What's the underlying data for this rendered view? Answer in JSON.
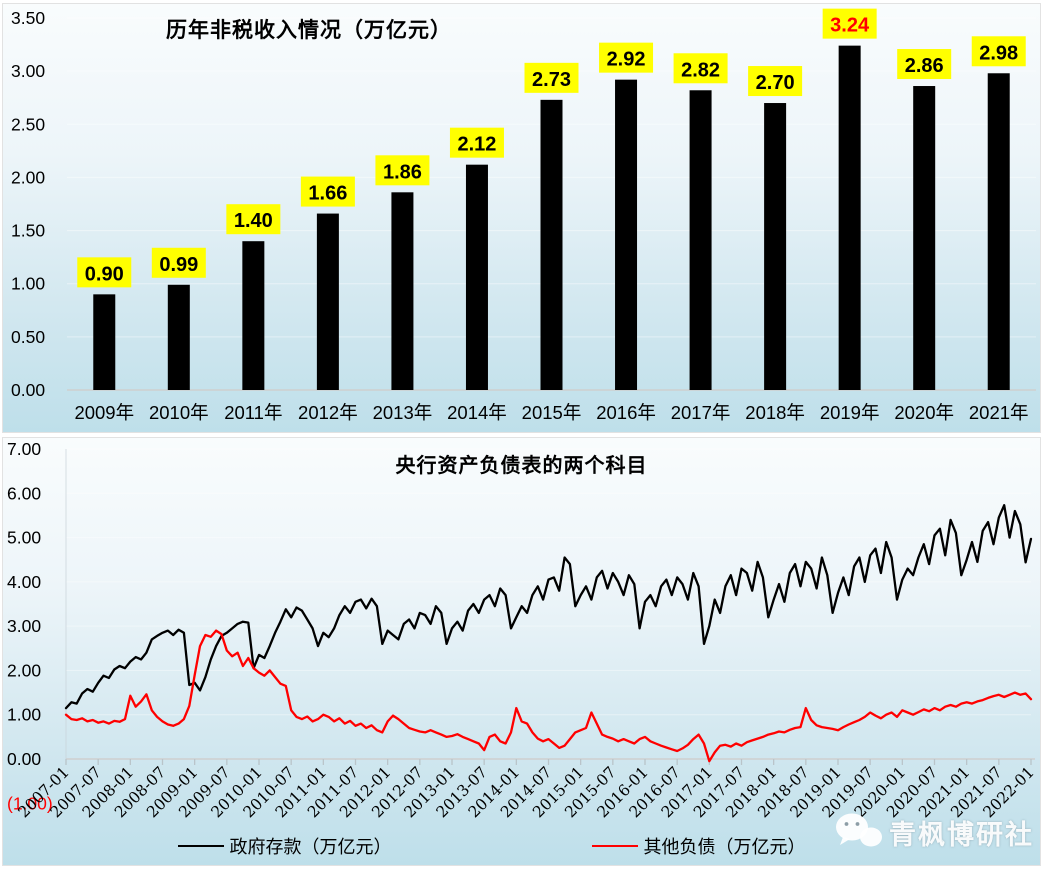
{
  "watermark": {
    "text": "青枫博研社",
    "icon": "wechat-icon"
  },
  "panel_style": {
    "gradient_top": "#f9fcfd",
    "gradient_bottom": "#bedfea",
    "axis_color": "#cfcfcf"
  },
  "chart_data": [
    {
      "type": "bar",
      "title": "历年非税收入情况（万亿元）",
      "categories": [
        "2009年",
        "2010年",
        "2011年",
        "2012年",
        "2013年",
        "2014年",
        "2015年",
        "2016年",
        "2017年",
        "2018年",
        "2019年",
        "2020年",
        "2021年"
      ],
      "values": [
        0.9,
        0.99,
        1.4,
        1.66,
        1.86,
        2.12,
        2.73,
        2.92,
        2.82,
        2.7,
        3.24,
        2.86,
        2.98
      ],
      "bar_color": "#000000",
      "data_label_bg": "#ffff00",
      "data_label_color": "#000000",
      "highlight_index": 10,
      "highlight_label_color": "#ff0000",
      "ylim": [
        0,
        3.5
      ],
      "yticks": [
        "3.50",
        "3.00",
        "2.50",
        "2.00",
        "1.50",
        "1.00",
        "0.50",
        "0.00"
      ],
      "grid": false,
      "legend_position": "none"
    },
    {
      "type": "line",
      "title": "央行资产负债表的两个科目",
      "x_start": "2007-01",
      "x_end": "2022-01",
      "x_interval": "monthly",
      "x_tick_labels": [
        "2007-01",
        "2007-07",
        "2008-01",
        "2008-07",
        "2009-01",
        "2009-07",
        "2010-01",
        "2010-07",
        "2011-01",
        "2011-07",
        "2012-01",
        "2012-07",
        "2013-01",
        "2013-07",
        "2014-01",
        "2014-07",
        "2015-01",
        "2015-07",
        "2016-01",
        "2016-07",
        "2017-01",
        "2017-07",
        "2018-01",
        "2018-07",
        "2019-01",
        "2019-07",
        "2020-01",
        "2020-07",
        "2021-01",
        "2021-07",
        "2022-01"
      ],
      "ylim": [
        -1,
        7
      ],
      "yticks": [
        "7.00",
        "6.00",
        "5.00",
        "4.00",
        "3.00",
        "2.00",
        "1.00",
        "0.00",
        "(1.00)"
      ],
      "negative_ytick_color": "#ff0000",
      "legend_position": "bottom",
      "series": [
        {
          "name": "政府存款（万亿元）",
          "color": "#000000",
          "values": [
            1.15,
            1.28,
            1.25,
            1.48,
            1.58,
            1.52,
            1.72,
            1.88,
            1.83,
            2.02,
            2.1,
            2.05,
            2.2,
            2.3,
            2.25,
            2.4,
            2.7,
            2.78,
            2.85,
            2.9,
            2.8,
            2.92,
            2.85,
            1.67,
            1.72,
            1.55,
            1.85,
            2.25,
            2.55,
            2.78,
            2.85,
            2.95,
            3.05,
            3.1,
            3.08,
            2.05,
            2.35,
            2.28,
            2.55,
            2.85,
            3.1,
            3.38,
            3.2,
            3.42,
            3.35,
            3.15,
            2.95,
            2.55,
            2.85,
            2.75,
            2.95,
            3.25,
            3.45,
            3.3,
            3.55,
            3.6,
            3.4,
            3.62,
            3.45,
            2.6,
            2.9,
            2.8,
            2.7,
            3.05,
            3.15,
            2.95,
            3.3,
            3.25,
            3.05,
            3.45,
            3.3,
            2.6,
            2.95,
            3.1,
            2.9,
            3.35,
            3.5,
            3.3,
            3.6,
            3.7,
            3.45,
            3.85,
            3.7,
            2.95,
            3.2,
            3.45,
            3.3,
            3.7,
            3.9,
            3.6,
            4.05,
            4.1,
            3.8,
            4.55,
            4.4,
            3.45,
            3.7,
            3.9,
            3.6,
            4.1,
            4.25,
            3.85,
            4.2,
            4.0,
            3.7,
            4.15,
            3.95,
            2.95,
            3.55,
            3.7,
            3.45,
            3.9,
            4.05,
            3.7,
            4.1,
            3.95,
            3.6,
            4.2,
            3.9,
            2.6,
            3.0,
            3.6,
            3.3,
            3.9,
            4.15,
            3.7,
            4.3,
            4.2,
            3.8,
            4.45,
            4.1,
            3.2,
            3.6,
            3.95,
            3.55,
            4.2,
            4.4,
            3.9,
            4.45,
            4.3,
            3.85,
            4.55,
            4.15,
            3.3,
            3.75,
            4.1,
            3.7,
            4.35,
            4.55,
            4.0,
            4.6,
            4.75,
            4.2,
            4.9,
            4.55,
            3.6,
            4.05,
            4.3,
            4.15,
            4.55,
            4.85,
            4.4,
            5.05,
            5.2,
            4.6,
            5.4,
            5.1,
            4.15,
            4.5,
            4.9,
            4.45,
            5.15,
            5.35,
            4.85,
            5.45,
            5.73,
            5.0,
            5.6,
            5.3,
            4.44,
            4.97
          ]
        },
        {
          "name": "其他负债（万亿元）",
          "color": "#ff0000",
          "values": [
            1.0,
            0.9,
            0.88,
            0.92,
            0.85,
            0.88,
            0.82,
            0.85,
            0.8,
            0.86,
            0.84,
            0.9,
            1.43,
            1.18,
            1.3,
            1.46,
            1.1,
            0.95,
            0.85,
            0.78,
            0.75,
            0.8,
            0.9,
            1.2,
            1.9,
            2.55,
            2.8,
            2.76,
            2.9,
            2.82,
            2.45,
            2.32,
            2.4,
            2.1,
            2.28,
            2.05,
            1.95,
            1.88,
            2.0,
            1.85,
            1.7,
            1.65,
            1.1,
            0.95,
            0.9,
            0.96,
            0.85,
            0.9,
            1.0,
            0.95,
            0.85,
            0.92,
            0.8,
            0.86,
            0.75,
            0.8,
            0.7,
            0.76,
            0.65,
            0.6,
            0.85,
            0.98,
            0.9,
            0.8,
            0.7,
            0.66,
            0.62,
            0.6,
            0.65,
            0.6,
            0.55,
            0.5,
            0.52,
            0.56,
            0.5,
            0.45,
            0.4,
            0.35,
            0.2,
            0.5,
            0.55,
            0.4,
            0.35,
            0.6,
            1.15,
            0.85,
            0.8,
            0.6,
            0.46,
            0.4,
            0.45,
            0.35,
            0.25,
            0.3,
            0.45,
            0.6,
            0.65,
            0.7,
            1.05,
            0.8,
            0.55,
            0.5,
            0.46,
            0.4,
            0.45,
            0.4,
            0.35,
            0.45,
            0.5,
            0.4,
            0.35,
            0.3,
            0.26,
            0.22,
            0.18,
            0.24,
            0.32,
            0.45,
            0.55,
            0.35,
            -0.05,
            0.15,
            0.3,
            0.32,
            0.28,
            0.35,
            0.3,
            0.38,
            0.42,
            0.46,
            0.5,
            0.55,
            0.58,
            0.62,
            0.6,
            0.66,
            0.7,
            0.72,
            1.15,
            0.88,
            0.76,
            0.72,
            0.7,
            0.68,
            0.65,
            0.72,
            0.78,
            0.83,
            0.88,
            0.95,
            1.05,
            0.98,
            0.92,
            1.0,
            1.05,
            0.95,
            1.1,
            1.05,
            1.0,
            1.06,
            1.12,
            1.08,
            1.15,
            1.1,
            1.18,
            1.22,
            1.18,
            1.25,
            1.28,
            1.25,
            1.3,
            1.33,
            1.38,
            1.42,
            1.45,
            1.4,
            1.45,
            1.5,
            1.45,
            1.48,
            1.35
          ]
        }
      ]
    }
  ]
}
